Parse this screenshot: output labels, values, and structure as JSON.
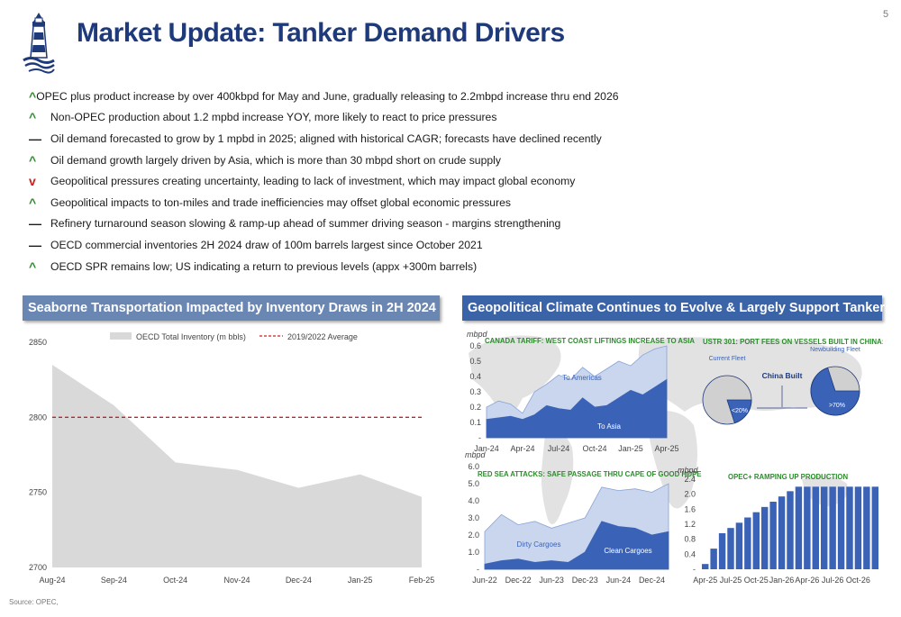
{
  "header": {
    "title": "Market Update: Tanker Demand Drivers",
    "page_number": "5"
  },
  "bullets": [
    {
      "mark": "^",
      "tone": "up",
      "text": "OPEC plus product increase by over 400kbpd for May and June, gradually releasing to 2.2mbpd increase thru end 2026"
    },
    {
      "mark": "^",
      "tone": "up",
      "text": "Non-OPEC production about 1.2 mpbd increase YOY, more likely to react to price pressures"
    },
    {
      "mark": "—",
      "tone": "flat",
      "text": "Oil demand forecasted to grow by 1 mpbd in 2025; aligned with historical CAGR; forecasts have declined recently"
    },
    {
      "mark": "^",
      "tone": "up",
      "text": "Oil demand growth largely driven by Asia, which is more than 30 mbpd short on crude supply"
    },
    {
      "mark": "v",
      "tone": "down",
      "text": "Geopolitical pressures creating uncertainty, leading to lack of investment, which may impact global economy"
    },
    {
      "mark": "^",
      "tone": "up",
      "text": "Geopolitical impacts to ton-miles and trade inefficiencies may offset global economic pressures"
    },
    {
      "mark": "—",
      "tone": "flat",
      "text": "Refinery turnaround season slowing & ramp-up ahead of summer driving season - margins strengthening"
    },
    {
      "mark": "—",
      "tone": "flat",
      "text": "OECD commercial inventories 2H 2024 draw of 100m barrels largest since October 2021"
    },
    {
      "mark": "^",
      "tone": "up",
      "text": "OECD SPR remains low; US indicating a return to previous levels (appx +300m barrels)"
    }
  ],
  "left_panel": {
    "title": "Seaborne Transportation Impacted by Inventory Draws in 2H 2024"
  },
  "right_panel": {
    "title": "Geopolitical Climate Continues to Evolve & Largely Support Tankers"
  },
  "source": "Source: OPEC,",
  "colors": {
    "title_blue": "#1f3a7a",
    "up_green": "#2e8b2e",
    "down_red": "#cc1f1f",
    "area_gray": "#d9d9d9",
    "avg_red": "#cc1f1f",
    "chart_blue": "#3a63b8",
    "chart_light_blue": "#c9d6ee"
  },
  "chart_data": [
    {
      "type": "area",
      "title": "",
      "legend": [
        "OECD Total Inventory (m bbls)",
        "2019/2022 Average"
      ],
      "legend_position": "top",
      "x": [
        "Aug-24",
        "Sep-24",
        "Oct-24",
        "Nov-24",
        "Dec-24",
        "Jan-25",
        "Feb-25"
      ],
      "series": [
        {
          "name": "OECD Total Inventory (m bbls)",
          "values": [
            2835,
            2808,
            2770,
            2765,
            2753,
            2762,
            2747
          ]
        },
        {
          "name": "2019/2022 Average",
          "values": [
            2800,
            2800,
            2800,
            2800,
            2800,
            2800,
            2800
          ]
        }
      ],
      "ylim": [
        2700,
        2850
      ],
      "yticks": [
        "2700",
        "2750",
        "2800",
        "2850"
      ],
      "grid": false
    },
    {
      "type": "area",
      "title": "CANADA TARIFF: WEST COAST LIFTINGS INCREASE TO ASIA",
      "ylabel": "mbpd",
      "x": [
        "Jan-24",
        "Feb-24",
        "Mar-24",
        "Apr-24",
        "May-24",
        "Jun-24",
        "Jul-24",
        "Aug-24",
        "Sep-24",
        "Oct-24",
        "Nov-24",
        "Dec-24",
        "Jan-25",
        "Feb-25",
        "Mar-25",
        "Apr-25"
      ],
      "xticks": [
        "Jan-24",
        "Apr-24",
        "Jul-24",
        "Oct-24",
        "Jan-25",
        "Apr-25"
      ],
      "series": [
        {
          "name": "To Asia",
          "values": [
            0.12,
            0.13,
            0.14,
            0.12,
            0.15,
            0.21,
            0.19,
            0.18,
            0.26,
            0.2,
            0.21,
            0.26,
            0.31,
            0.28,
            0.33,
            0.38
          ]
        },
        {
          "name": "To Americas",
          "values": [
            0.2,
            0.24,
            0.22,
            0.16,
            0.3,
            0.35,
            0.41,
            0.38,
            0.46,
            0.4,
            0.45,
            0.5,
            0.47,
            0.54,
            0.58,
            0.6
          ]
        }
      ],
      "ylim": [
        0,
        0.6
      ],
      "yticks": [
        "-",
        "0.1",
        "0.2",
        "0.3",
        "0.4",
        "0.5",
        "0.6"
      ]
    },
    {
      "type": "pie",
      "title": "USTR 301: PORT FEES ON VESSELS BUILT IN CHINA:",
      "center_label": "China Built",
      "pies": [
        {
          "name": "Current Fleet",
          "china_share": 0.2,
          "label": "<20%"
        },
        {
          "name": "Newbuilding Fleet",
          "china_share": 0.7,
          "label": ">70%"
        }
      ]
    },
    {
      "type": "area",
      "title": "RED SEA ATTACKS: SAFE PASSAGE THRU CAPE OF GOOD HOPE",
      "ylabel": "mbpd",
      "x": [
        "Jun-22",
        "Sep-22",
        "Dec-22",
        "Mar-23",
        "Jun-23",
        "Sep-23",
        "Dec-23",
        "Mar-24",
        "Jun-24",
        "Sep-24",
        "Dec-24",
        "Mar-25"
      ],
      "xticks": [
        "Jun-22",
        "Dec-22",
        "Jun-23",
        "Dec-23",
        "Jun-24",
        "Dec-24"
      ],
      "series": [
        {
          "name": "Clean Cargoes",
          "values": [
            0.3,
            0.5,
            0.6,
            0.4,
            0.5,
            0.4,
            1.0,
            2.8,
            2.5,
            2.4,
            2.0,
            2.2
          ]
        },
        {
          "name": "Dirty Cargoes",
          "values": [
            2.2,
            3.2,
            2.6,
            2.8,
            2.4,
            2.7,
            3.0,
            4.8,
            4.6,
            4.7,
            4.5,
            5.0
          ]
        }
      ],
      "ylim": [
        0,
        6
      ],
      "yticks": [
        "-",
        "1.0",
        "2.0",
        "3.0",
        "4.0",
        "5.0",
        "6.0"
      ]
    },
    {
      "type": "bar",
      "title": "OPEC+ RAMPING UP PRODUCTION",
      "ylabel": "mbpd",
      "x": [
        "Apr-25",
        "May-25",
        "Jun-25",
        "Jul-25",
        "Aug-25",
        "Sep-25",
        "Oct-25",
        "Nov-25",
        "Dec-25",
        "Jan-26",
        "Feb-26",
        "Mar-26",
        "Apr-26",
        "May-26",
        "Jun-26",
        "Jul-26",
        "Aug-26",
        "Sep-26",
        "Oct-26",
        "Nov-26",
        "Dec-26"
      ],
      "xticks": [
        "Apr-25",
        "Jul-25",
        "Oct-25",
        "Jan-26",
        "Apr-26",
        "Jul-26",
        "Oct-26"
      ],
      "values": [
        0.14,
        0.55,
        0.96,
        1.1,
        1.24,
        1.38,
        1.52,
        1.66,
        1.8,
        1.94,
        2.08,
        2.2,
        2.2,
        2.2,
        2.2,
        2.2,
        2.2,
        2.2,
        2.2,
        2.2,
        2.2
      ],
      "ylim": [
        0,
        2.4
      ],
      "yticks": [
        "-",
        "0.4",
        "0.8",
        "1.2",
        "1.6",
        "2.0",
        "2.4"
      ]
    }
  ]
}
